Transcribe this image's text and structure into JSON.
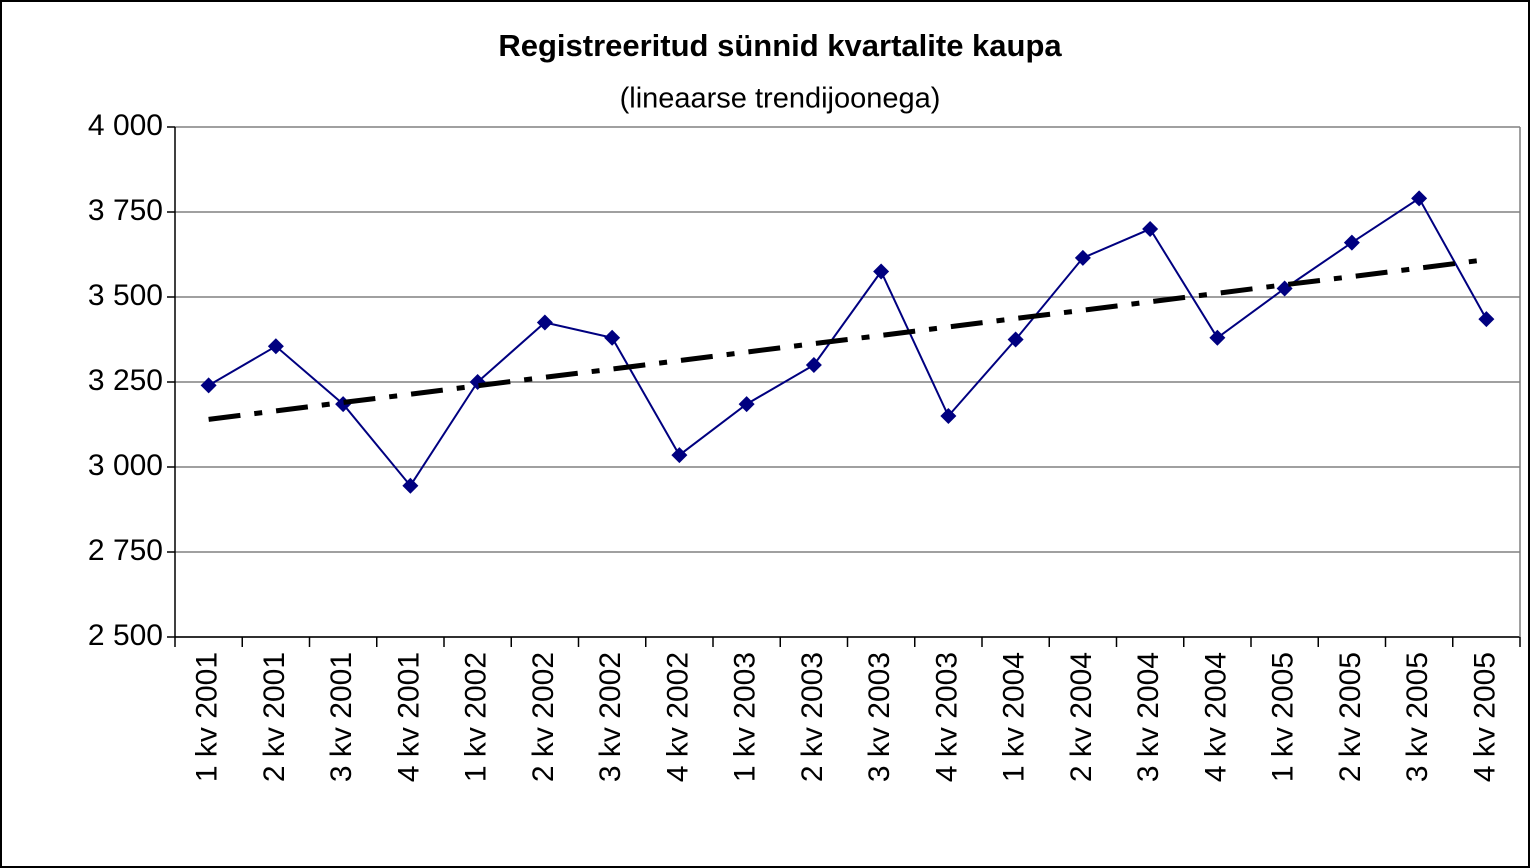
{
  "chart_data": {
    "type": "line",
    "title": "Registreeritud sünnid kvartalite kaupa",
    "subtitle": "(lineaarse trendijoonega)",
    "categories": [
      "1 kv 2001",
      "2 kv 2001",
      "3 kv 2001",
      "4 kv 2001",
      "1 kv 2002",
      "2 kv 2002",
      "3 kv 2002",
      "4 kv 2002",
      "1 kv 2003",
      "2 kv 2003",
      "3 kv 2003",
      "4 kv 2003",
      "1 kv 2004",
      "2 kv 2004",
      "3 kv 2004",
      "4 kv 2004",
      "1 kv 2005",
      "2 kv 2005",
      "3 kv 2005",
      "4 kv 2005"
    ],
    "series": [
      {
        "color": "#000080",
        "marker": "diamond",
        "values": [
          3240,
          3355,
          3185,
          2945,
          3250,
          3425,
          3380,
          3035,
          3185,
          3300,
          3575,
          3150,
          3375,
          3615,
          3700,
          3380,
          3525,
          3660,
          3790,
          3435
        ]
      },
      {
        "color": "#000000",
        "dash": "dashdot",
        "values": [
          3140,
          3165,
          3190,
          3214,
          3239,
          3264,
          3288,
          3313,
          3338,
          3363,
          3387,
          3412,
          3437,
          3461,
          3486,
          3511,
          3536,
          3560,
          3585,
          3610
        ]
      }
    ],
    "ylim": [
      2500,
      4000
    ],
    "yticks": [
      {
        "value": 2500,
        "label": "2 500"
      },
      {
        "value": 2750,
        "label": "2 750"
      },
      {
        "value": 3000,
        "label": "3 000"
      },
      {
        "value": 3250,
        "label": "3 250"
      },
      {
        "value": 3500,
        "label": "3 500"
      },
      {
        "value": 3750,
        "label": "3 750"
      },
      {
        "value": 4000,
        "label": "4 000"
      }
    ],
    "grid": true
  }
}
